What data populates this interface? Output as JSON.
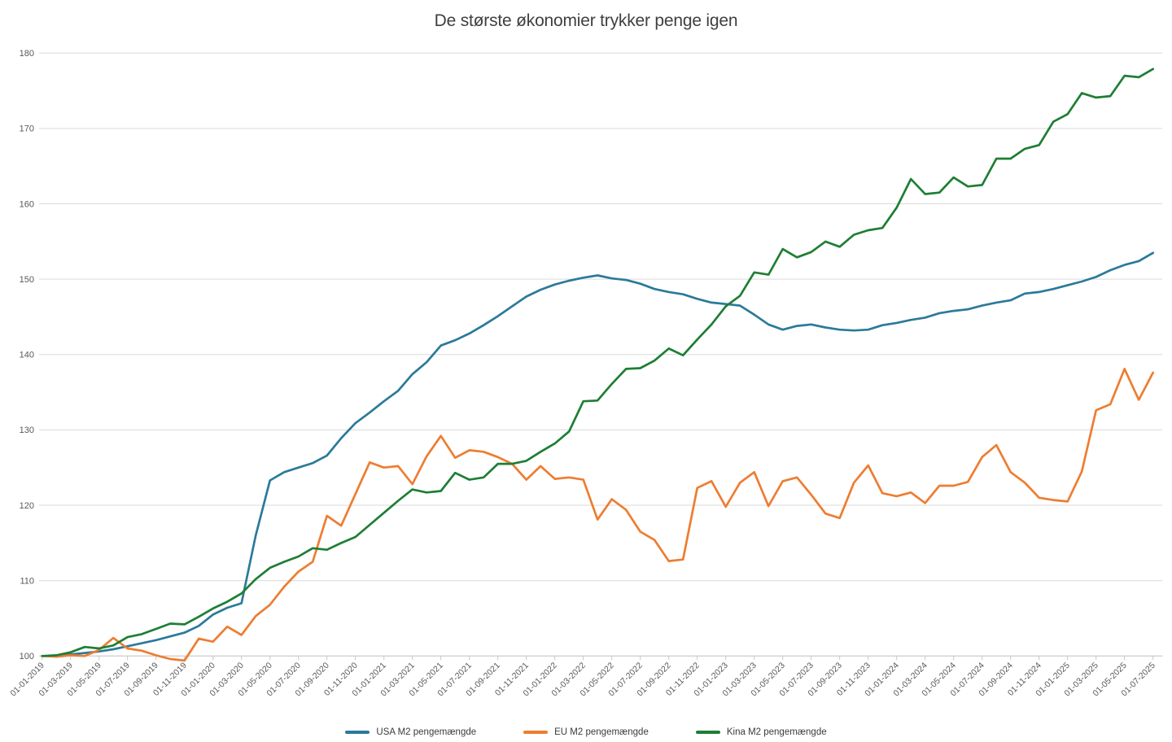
{
  "title": "De største økonomier trykker penge igen",
  "chart_data": {
    "type": "line",
    "grid": true,
    "legend_position": "bottom",
    "ylim": [
      100,
      180
    ],
    "y_ticks": [
      100,
      110,
      120,
      130,
      140,
      150,
      160,
      170,
      180
    ],
    "x_label_step": 2,
    "x_labels": [
      "01-01-2019",
      "01-02-2019",
      "01-03-2019",
      "01-04-2019",
      "01-05-2019",
      "01-06-2019",
      "01-07-2019",
      "01-08-2019",
      "01-09-2019",
      "01-10-2019",
      "01-11-2019",
      "01-12-2019",
      "01-01-2020",
      "01-02-2020",
      "01-03-2020",
      "01-04-2020",
      "01-05-2020",
      "01-06-2020",
      "01-07-2020",
      "01-08-2020",
      "01-09-2020",
      "01-10-2020",
      "01-11-2020",
      "01-12-2020",
      "01-01-2021",
      "01-02-2021",
      "01-03-2021",
      "01-04-2021",
      "01-05-2021",
      "01-06-2021",
      "01-07-2021",
      "01-08-2021",
      "01-09-2021",
      "01-10-2021",
      "01-11-2021",
      "01-12-2021",
      "01-01-2022",
      "01-02-2022",
      "01-03-2022",
      "01-04-2022",
      "01-05-2022",
      "01-06-2022",
      "01-07-2022",
      "01-08-2022",
      "01-09-2022",
      "01-10-2022",
      "01-11-2022",
      "01-12-2022",
      "01-01-2023",
      "01-02-2023",
      "01-03-2023",
      "01-04-2023",
      "01-05-2023",
      "01-06-2023",
      "01-07-2023",
      "01-08-2023",
      "01-09-2023",
      "01-10-2023",
      "01-11-2023",
      "01-12-2023",
      "01-01-2024",
      "01-02-2024",
      "01-03-2024",
      "01-04-2024",
      "01-05-2024",
      "01-06-2024",
      "01-07-2024",
      "01-08-2024",
      "01-09-2024",
      "01-10-2024",
      "01-11-2024",
      "01-12-2024",
      "01-01-2025",
      "01-02-2025",
      "01-03-2025",
      "01-04-2025",
      "01-05-2025",
      "01-06-2025",
      "01-07-2025"
    ],
    "series": [
      {
        "name": "USA M2 pengemængde",
        "color": "#2b7a99",
        "values": [
          100.0,
          100.0,
          100.2,
          100.4,
          100.6,
          100.9,
          101.3,
          101.7,
          102.1,
          102.6,
          103.1,
          104.0,
          105.5,
          106.4,
          107.0,
          116.0,
          123.3,
          124.4,
          125.0,
          125.6,
          126.6,
          128.9,
          130.9,
          132.3,
          133.8,
          135.2,
          137.4,
          139.0,
          141.2,
          141.9,
          142.8,
          143.9,
          145.1,
          146.4,
          147.7,
          148.6,
          149.3,
          149.8,
          150.2,
          150.5,
          150.1,
          149.9,
          149.4,
          148.7,
          148.3,
          148.0,
          147.4,
          146.9,
          146.7,
          146.5,
          145.3,
          144.0,
          143.3,
          143.8,
          144.0,
          143.6,
          143.3,
          143.2,
          143.3,
          143.9,
          144.2,
          144.6,
          144.9,
          145.5,
          145.8,
          146.0,
          146.5,
          146.9,
          147.2,
          148.1,
          148.3,
          148.7,
          149.2,
          149.7,
          150.3,
          151.2,
          151.9,
          152.4,
          153.5
        ]
      },
      {
        "name": "EU M2 pengemængde",
        "color": "#ed7d31",
        "values": [
          100.0,
          99.9,
          100.1,
          100.0,
          100.8,
          102.4,
          101.0,
          100.7,
          100.1,
          99.6,
          99.4,
          102.3,
          101.9,
          103.9,
          102.8,
          105.3,
          106.8,
          109.2,
          111.2,
          112.5,
          118.6,
          117.3,
          121.5,
          125.7,
          125.0,
          125.2,
          122.8,
          126.5,
          129.2,
          126.3,
          127.3,
          127.1,
          126.4,
          125.5,
          123.4,
          125.2,
          123.5,
          123.7,
          123.4,
          118.1,
          120.8,
          119.4,
          116.5,
          115.4,
          112.6,
          112.8,
          122.3,
          123.2,
          119.8,
          123.0,
          124.4,
          119.9,
          123.2,
          123.7,
          121.4,
          118.9,
          118.3,
          123.0,
          125.3,
          121.6,
          121.2,
          121.7,
          120.3,
          122.6,
          122.6,
          123.1,
          126.4,
          128.0,
          124.4,
          123.0,
          121.0,
          120.7,
          120.5,
          124.5,
          132.6,
          133.4,
          138.1,
          134.0,
          137.6
        ]
      },
      {
        "name": "Kina M2 pengemængde",
        "color": "#1e7e34",
        "values": [
          100.0,
          100.1,
          100.5,
          101.2,
          101.0,
          101.4,
          102.5,
          102.9,
          103.6,
          104.3,
          104.2,
          105.2,
          106.3,
          107.2,
          108.3,
          110.2,
          111.7,
          112.5,
          113.2,
          114.3,
          114.1,
          115.0,
          115.8,
          117.4,
          119.0,
          120.6,
          122.1,
          121.7,
          121.9,
          124.3,
          123.4,
          123.7,
          125.5,
          125.5,
          125.9,
          127.1,
          128.2,
          129.8,
          133.8,
          133.9,
          136.1,
          138.1,
          138.2,
          139.2,
          140.8,
          139.9,
          142.0,
          144.0,
          146.4,
          147.8,
          150.9,
          150.6,
          154.0,
          152.9,
          153.6,
          155.0,
          154.3,
          155.9,
          156.5,
          156.8,
          159.5,
          163.3,
          161.3,
          161.5,
          163.5,
          162.3,
          162.5,
          166.0,
          166.0,
          167.3,
          167.8,
          170.9,
          171.9,
          174.7,
          174.1,
          174.3,
          177.0,
          176.8,
          177.9
        ]
      }
    ],
    "style": {
      "grid_color": "#d9d9d9",
      "axis_color": "#c8c8c8",
      "tick_label_color": "#595959",
      "line_width": 2.7
    }
  }
}
